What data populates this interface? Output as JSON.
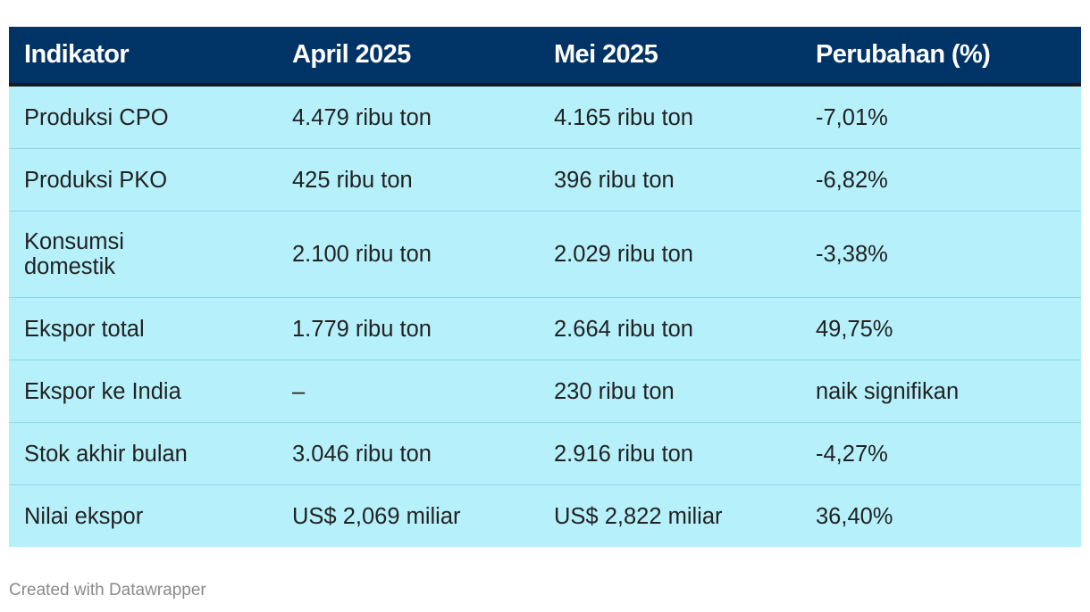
{
  "chart_data": {
    "type": "table",
    "columns": [
      "Indikator",
      "April 2025",
      "Mei 2025",
      "Perubahan (%)"
    ],
    "rows": [
      [
        "Produksi CPO",
        "4.479 ribu ton",
        "4.165 ribu ton",
        "-7,01%"
      ],
      [
        "Produksi PKO",
        "425 ribu ton",
        "396 ribu ton",
        "-6,82%"
      ],
      [
        "Konsumsi domestik",
        "2.100 ribu ton",
        "2.029 ribu ton",
        "-3,38%"
      ],
      [
        "Ekspor total",
        "1.779 ribu ton",
        "2.664 ribu ton",
        "49,75%"
      ],
      [
        "Ekspor ke India",
        "–",
        "230 ribu ton",
        "naik signifikan"
      ],
      [
        "Stok akhir bulan",
        "3.046 ribu ton",
        "2.916 ribu ton",
        "-4,27%"
      ],
      [
        "Nilai ekspor",
        "US$ 2,069 miliar",
        "US$ 2,822 miliar",
        "36,40%"
      ]
    ],
    "colors": {
      "header_background": "#003366",
      "header_text": "#ffffff",
      "row_background": "#b6f1fb",
      "row_divider": "#8fd6e3"
    }
  },
  "footer": {
    "credit": "Created with Datawrapper"
  }
}
